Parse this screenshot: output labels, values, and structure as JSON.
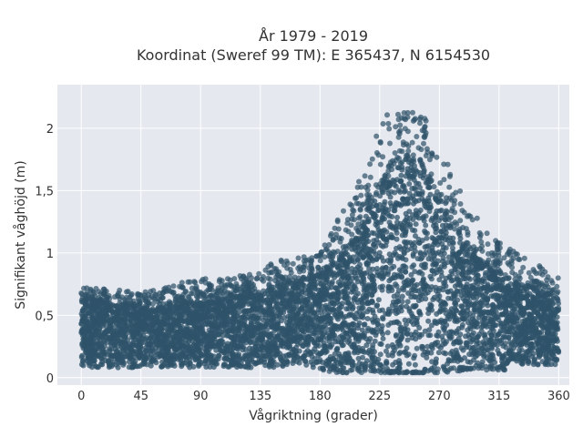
{
  "chart_data": {
    "type": "scatter",
    "title_line1": "År 1979 - 2019",
    "title_line2": "Koordinat (Sweref 99 TM): E 365437, N 6154530",
    "xlabel": "Vågriktning (grader)",
    "ylabel": "Signifikant våghöjd (m)",
    "xlim": [
      -18,
      368
    ],
    "ylim": [
      -0.06,
      2.35
    ],
    "x_ticks": [
      0,
      45,
      90,
      135,
      180,
      225,
      270,
      315,
      360
    ],
    "x_tick_labels": [
      "0",
      "45",
      "90",
      "135",
      "180",
      "225",
      "270",
      "315",
      "360"
    ],
    "y_ticks": [
      0,
      0.5,
      1,
      1.5,
      2
    ],
    "y_tick_labels": [
      "0",
      "0,5",
      "1",
      "1,5",
      "2"
    ],
    "grid": true,
    "legend": "none",
    "envelope": {
      "direction_deg": [
        0,
        20,
        45,
        90,
        120,
        150,
        180,
        200,
        215,
        225,
        235,
        245,
        255,
        265,
        275,
        290,
        305,
        320,
        340,
        355,
        360
      ],
      "upper_bulk_m": [
        0.62,
        0.6,
        0.55,
        0.6,
        0.65,
        0.72,
        0.82,
        1.0,
        1.3,
        1.5,
        1.68,
        1.75,
        1.72,
        1.55,
        1.3,
        1.05,
        0.88,
        0.8,
        0.72,
        0.66,
        0.62
      ],
      "upper_outliers_m": [
        0.72,
        0.72,
        0.68,
        0.8,
        0.82,
        0.95,
        1.0,
        1.4,
        1.7,
        2.08,
        2.2,
        2.2,
        2.15,
        2.0,
        1.75,
        1.4,
        1.2,
        1.06,
        0.95,
        0.82,
        0.8
      ],
      "lower_m": [
        0.08,
        0.08,
        0.08,
        0.08,
        0.08,
        0.08,
        0.08,
        0.08,
        0.08,
        0.08,
        0.06,
        0.05,
        0.05,
        0.06,
        0.08,
        0.1,
        0.1,
        0.1,
        0.1,
        0.1,
        0.1
      ]
    },
    "colors": {
      "point": "#2f5369",
      "plot_background": "#e5e8ef",
      "grid": "#ffffff"
    }
  }
}
